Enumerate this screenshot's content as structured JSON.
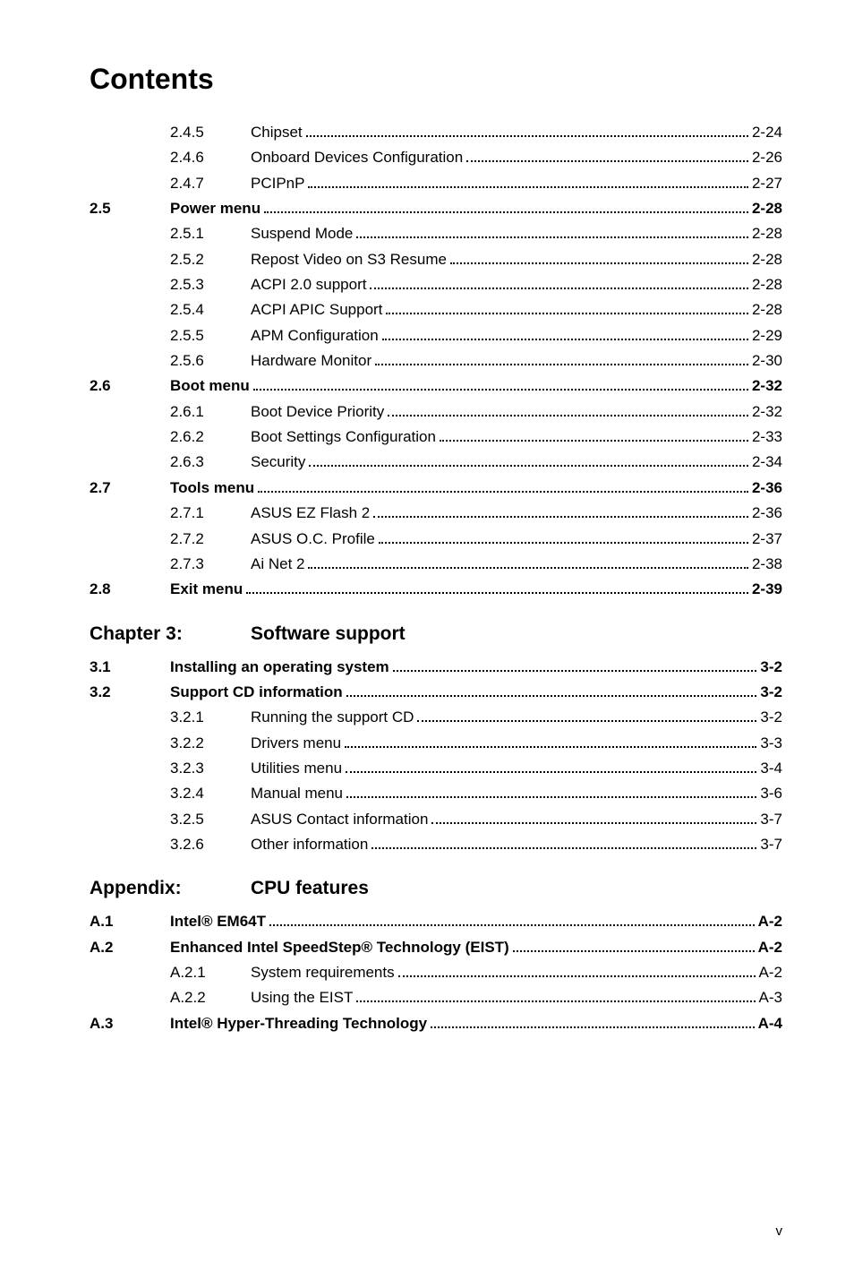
{
  "title": "Contents",
  "entries": [
    {
      "type": "sub",
      "num": "2.4.5",
      "label": "Chipset",
      "page": "2-24"
    },
    {
      "type": "sub",
      "num": "2.4.6",
      "label": "Onboard Devices Configuration",
      "page": "2-26"
    },
    {
      "type": "sub",
      "num": "2.4.7",
      "label": "PCIPnP",
      "page": "2-27"
    },
    {
      "type": "main",
      "num": "2.5",
      "label": "Power menu",
      "page": "2-28"
    },
    {
      "type": "sub",
      "num": "2.5.1",
      "label": "Suspend Mode",
      "page": "2-28"
    },
    {
      "type": "sub",
      "num": "2.5.2",
      "label": "Repost Video on S3 Resume",
      "page": "2-28"
    },
    {
      "type": "sub",
      "num": "2.5.3",
      "label": "ACPI 2.0 support",
      "page": "2-28"
    },
    {
      "type": "sub",
      "num": "2.5.4",
      "label": "ACPI APIC Support",
      "page": "2-28"
    },
    {
      "type": "sub",
      "num": "2.5.5",
      "label": "APM Configuration",
      "page": "2-29"
    },
    {
      "type": "sub",
      "num": "2.5.6",
      "label": "Hardware Monitor",
      "page": "2-30"
    },
    {
      "type": "main",
      "num": "2.6",
      "label": "Boot menu",
      "page": "2-32"
    },
    {
      "type": "sub",
      "num": "2.6.1",
      "label": "Boot Device Priority",
      "page": "2-32"
    },
    {
      "type": "sub",
      "num": "2.6.2",
      "label": "Boot Settings Configuration",
      "page": "2-33"
    },
    {
      "type": "sub",
      "num": "2.6.3",
      "label": "Security",
      "page": "2-34"
    },
    {
      "type": "main",
      "num": "2.7",
      "label": "Tools menu",
      "page": "2-36"
    },
    {
      "type": "sub",
      "num": "2.7.1",
      "label": "ASUS EZ Flash 2",
      "page": "2-36"
    },
    {
      "type": "sub",
      "num": "2.7.2",
      "label": "ASUS O.C. Profile",
      "page": "2-37"
    },
    {
      "type": "sub",
      "num": "2.7.3",
      "label": "Ai Net 2",
      "page": "2-38"
    },
    {
      "type": "main",
      "num": "2.8",
      "label": "Exit menu",
      "page": "2-39"
    }
  ],
  "chapter3": {
    "label": "Chapter 3:",
    "title": "Software support",
    "entries": [
      {
        "type": "main",
        "num": "3.1",
        "label": "Installing an operating system",
        "page": "3-2"
      },
      {
        "type": "main",
        "num": "3.2",
        "label": "Support CD information",
        "page": "3-2"
      },
      {
        "type": "sub",
        "num": "3.2.1",
        "label": "Running the support CD",
        "page": "3-2"
      },
      {
        "type": "sub",
        "num": "3.2.2",
        "label": "Drivers menu",
        "page": "3-3"
      },
      {
        "type": "sub",
        "num": "3.2.3",
        "label": "Utilities menu",
        "page": "3-4"
      },
      {
        "type": "sub",
        "num": "3.2.4",
        "label": "Manual menu",
        "page": "3-6"
      },
      {
        "type": "sub",
        "num": "3.2.5",
        "label": "ASUS Contact information",
        "page": "3-7"
      },
      {
        "type": "sub",
        "num": "3.2.6",
        "label": "Other information",
        "page": "3-7"
      }
    ]
  },
  "appendix": {
    "label": "Appendix:",
    "title": "CPU features",
    "entries": [
      {
        "type": "main",
        "num": "A.1",
        "label": "Intel® EM64T",
        "page": "A-2"
      },
      {
        "type": "main",
        "num": "A.2",
        "label": "Enhanced Intel SpeedStep® Technology (EIST)",
        "page": "A-2"
      },
      {
        "type": "sub",
        "num": "A.2.1",
        "label": "System requirements",
        "page": "A-2"
      },
      {
        "type": "sub",
        "num": "A.2.2",
        "label": "Using the EIST",
        "page": "A-3"
      },
      {
        "type": "main",
        "num": "A.3",
        "label": "Intel® Hyper-Threading Technology",
        "page": "A-4"
      }
    ]
  },
  "footer": "v"
}
